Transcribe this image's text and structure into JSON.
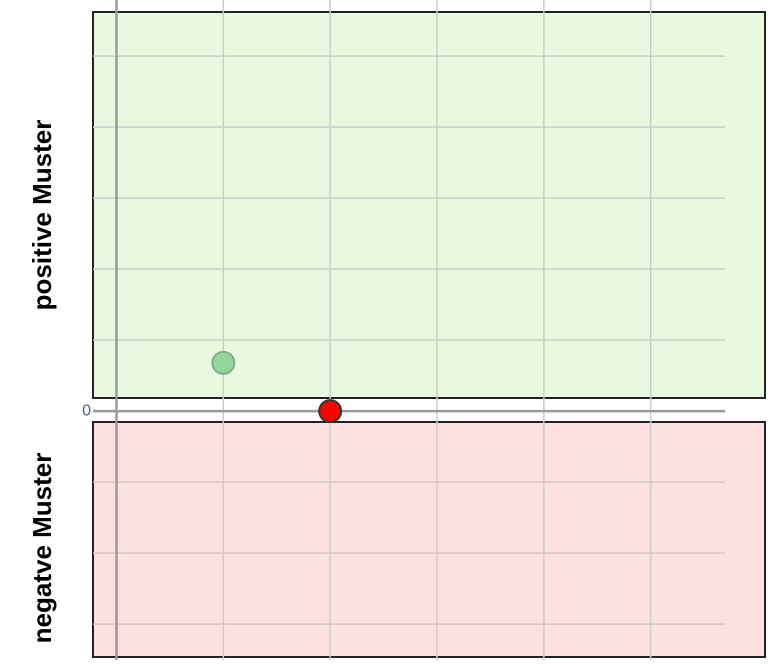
{
  "chart_data": {
    "type": "scatter",
    "region_labels": [
      "positive Muster",
      "negatve Muster"
    ],
    "x": [
      1,
      2
    ],
    "values": [
      0.68,
      0
    ],
    "colors": [
      "#8fd89a",
      "#ff0000"
    ],
    "xlim": [
      -0.22,
      6.07
    ],
    "ylim": [
      -3.66,
      5.79
    ],
    "yticks": [
      0
    ],
    "grid": true
  }
}
